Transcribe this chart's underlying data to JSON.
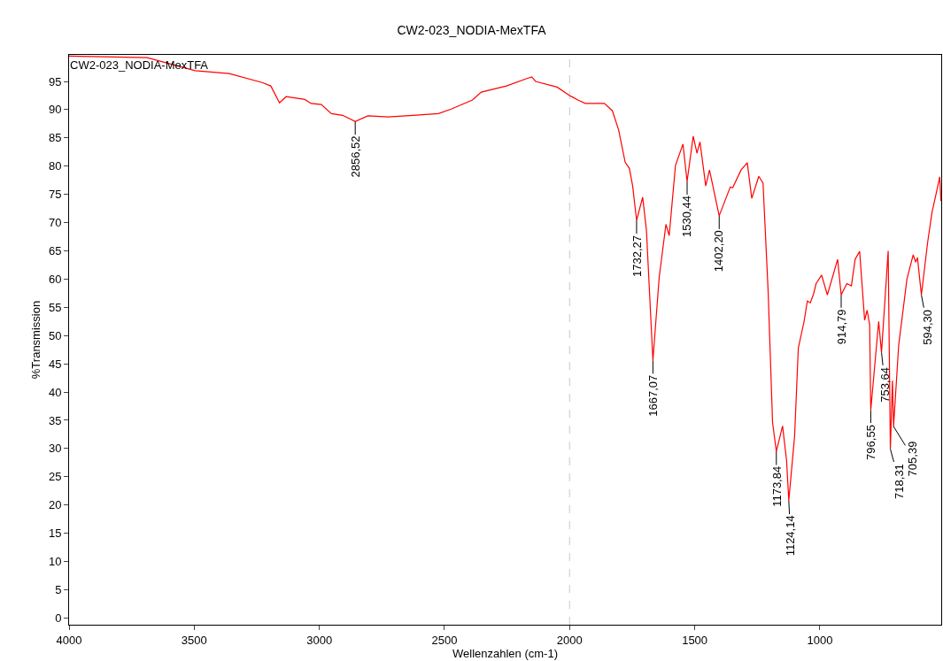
{
  "chart_data": {
    "type": "line",
    "title": "CW2-023_NODIA-MexTFA",
    "xlabel": "Wellenzahlen (cm-1)",
    "ylabel": "%Transmission",
    "x": [
      4000,
      3688,
      3496,
      3360,
      3229,
      3194,
      3159,
      3133,
      3058,
      3033,
      2992,
      2952,
      2907,
      2856.52,
      2806,
      2725,
      2625,
      2524,
      2473,
      2388,
      2353,
      2252,
      2171,
      2151,
      2136,
      2050,
      2000,
      1987,
      1967,
      1937,
      1861,
      1829,
      1804,
      1778,
      1761,
      1748,
      1732.27,
      1708,
      1693,
      1667.07,
      1642,
      1615,
      1602,
      1577,
      1547,
      1530.44,
      1506,
      1491,
      1479,
      1456,
      1441,
      1402.2,
      1358,
      1348,
      1315,
      1290,
      1272,
      1244,
      1227,
      1207,
      1191,
      1189,
      1173.84,
      1149,
      1133,
      1124.14,
      1101,
      1086,
      1063,
      1050,
      1038,
      1025,
      1015,
      993,
      970,
      929,
      914.79,
      892,
      874,
      859,
      841,
      821,
      811,
      801,
      796.55,
      765,
      753.64,
      727,
      718.31,
      710,
      705.39,
      685,
      652,
      627,
      617,
      610,
      594.3,
      569,
      552,
      534,
      521,
      516
    ],
    "series": [
      {
        "name": null,
        "color": "#ff0000",
        "values": [
          99.5,
          99.2,
          96.9,
          96.4,
          94.8,
          94.2,
          91.2,
          92.3,
          91.8,
          91.1,
          90.9,
          89.3,
          89.0,
          87.9,
          88.9,
          88.7,
          89.0,
          89.3,
          90.1,
          91.7,
          93.1,
          94.2,
          95.5,
          95.8,
          95.0,
          94.0,
          92.5,
          92.2,
          91.7,
          91.1,
          91.1,
          89.8,
          86.4,
          80.7,
          79.6,
          76.5,
          70.4,
          74.5,
          68.7,
          45.6,
          60.3,
          69.7,
          67.7,
          80.1,
          83.9,
          77.3,
          85.3,
          82.3,
          84.3,
          76.5,
          79.3,
          71.2,
          76.3,
          76.2,
          79.3,
          80.6,
          74.3,
          78.2,
          77.0,
          58.2,
          37.3,
          34.6,
          29.5,
          34.0,
          27.9,
          20.8,
          32.1,
          47.8,
          52.5,
          56.1,
          55.8,
          57.4,
          59.2,
          60.7,
          57.2,
          63.5,
          57.2,
          59.2,
          58.8,
          63.5,
          64.9,
          52.7,
          54.5,
          51.9,
          36.8,
          52.5,
          47.0,
          65.0,
          29.9,
          42.0,
          33.9,
          48.3,
          60.0,
          64.3,
          63.0,
          63.8,
          57.2,
          66.6,
          71.8,
          75.4,
          78.1,
          73.8
        ]
      }
    ],
    "xlim": [
      4000,
      515
    ],
    "xticks": [
      4000,
      3500,
      3000,
      2500,
      2000,
      1500,
      1000
    ],
    "ylim": [
      -1.2,
      99.7
    ],
    "yticks": [
      0,
      5,
      10,
      15,
      20,
      25,
      30,
      35,
      40,
      45,
      50,
      55,
      60,
      65,
      70,
      75,
      80,
      85,
      90,
      95
    ],
    "grid": false,
    "marker": "none",
    "line_style": "solid",
    "ref_lines": [
      {
        "axis": "x",
        "value": 2000,
        "label": null,
        "color": "#c8c8c8",
        "line_style": "dashed"
      }
    ],
    "annotations": [
      "CW2-023_NODIA-MexTFA",
      {
        "text": "2856,52",
        "x": 2856.52,
        "y": 87.9
      },
      {
        "text": "1732,27",
        "x": 1732.27,
        "y": 70.4
      },
      {
        "text": "1667,07",
        "x": 1667.07,
        "y": 45.6
      },
      {
        "text": "1530,44",
        "x": 1530.44,
        "y": 77.3
      },
      {
        "text": "1402,20",
        "x": 1402.2,
        "y": 71.2
      },
      {
        "text": "1173,84",
        "x": 1173.84,
        "y": 29.5
      },
      {
        "text": "1124,14",
        "x": 1124.14,
        "y": 20.8
      },
      {
        "text": "914,79",
        "x": 914.79,
        "y": 57.2
      },
      {
        "text": "796,55",
        "x": 796.55,
        "y": 36.8
      },
      {
        "text": "753,64",
        "x": 753.64,
        "y": 47.0
      },
      {
        "text": "718,31",
        "x": 718.31,
        "y": 29.9
      },
      {
        "text": "705,39",
        "x": 705.39,
        "y": 33.9
      },
      {
        "text": "594,30",
        "x": 594.3,
        "y": 57.2
      }
    ]
  }
}
